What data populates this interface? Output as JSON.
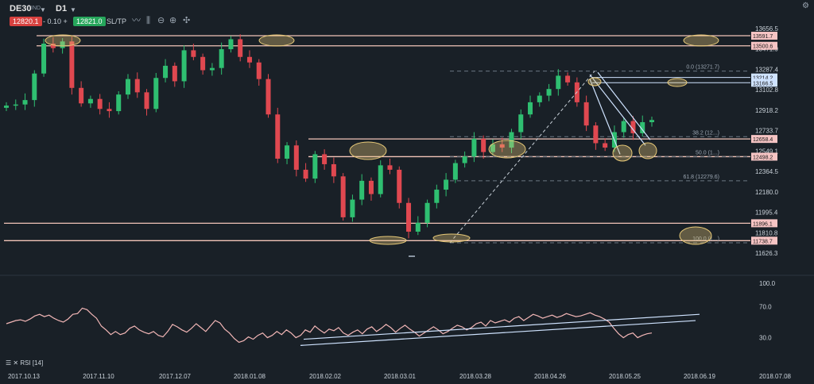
{
  "toolbar": {
    "symbol": "DE30",
    "symbol_sub": "IND",
    "timeframe": "D1",
    "bid": "12820.1",
    "spread": "- 0.10 +",
    "ask": "12821.0",
    "sltp": "SL/TP",
    "icons": [
      "line-chart-icon",
      "indicators-icon",
      "zoom-out-icon",
      "zoom-in-icon",
      "crosshair-icon"
    ],
    "settings_icon": "gear-icon"
  },
  "rsi_label": "RSI [14]",
  "chart_data": [
    {
      "type": "candlestick",
      "ylim": [
        11626.3,
        13656.5
      ],
      "y_ticks": [
        "13656.5",
        "13471.9",
        "13287.4",
        "13102.8",
        "12918.2",
        "12733.7",
        "12549.1",
        "12364.5",
        "12180.0",
        "11995.4",
        "11810.8",
        "11626.3"
      ],
      "x_ticks": [
        "2017.10.13",
        "2017.11.10",
        "2017.12.07",
        "2018.01.08",
        "2018.02.02",
        "2018.03.01",
        "2018.03.28",
        "2018.04.26",
        "2018.05.25",
        "2018.06.19",
        "2018.07.08"
      ],
      "horizontal_levels": [
        {
          "label": "13591.7",
          "value": 13591.7
        },
        {
          "label": "13500.6",
          "value": 13500.6
        },
        {
          "label": "12658.4",
          "value": 12658.4
        },
        {
          "label": "12498.2",
          "value": 12498.2
        },
        {
          "label": "11896.1",
          "value": 11896.1
        },
        {
          "label": "11738.7",
          "value": 11738.7
        }
      ],
      "channel_levels": [
        {
          "label": "13214.2",
          "value": 13214.2
        },
        {
          "label": "13166.5",
          "value": 13166.5
        }
      ],
      "fibonacci": [
        {
          "label": "0.0 (13271.7)",
          "value": 13271.7
        },
        {
          "label": "38.2 (12...)",
          "value": 12679
        },
        {
          "label": "50.0 (1...)",
          "value": 12497
        },
        {
          "label": "61.8 (12279.6)",
          "value": 12279.6
        },
        {
          "label": "100.0 (1...)",
          "value": 11720
        }
      ],
      "close_series_sample": [
        12960,
        12970,
        13010,
        13250,
        13520,
        13480,
        13540,
        13120,
        12980,
        13020,
        12930,
        12910,
        13060,
        13200,
        13080,
        12930,
        13210,
        13320,
        13180,
        13460,
        13400,
        13280,
        13300,
        13470,
        13560,
        13400,
        13350,
        13200,
        12880,
        12480,
        12600,
        12380,
        12300,
        12520,
        12430,
        12320,
        11950,
        12110,
        12280,
        12160,
        12420,
        12380,
        12080,
        11820,
        11900,
        12080,
        12200,
        12290,
        12440,
        12500,
        12660,
        12540,
        12610,
        12580,
        12720,
        12880,
        12990,
        13050,
        13110,
        13230,
        13170,
        12990,
        12780,
        12620,
        12580,
        12720,
        12820,
        12710,
        12810,
        12830
      ]
    },
    {
      "type": "line",
      "name": "RSI [14]",
      "ylim": [
        0,
        100
      ],
      "y_ticks": [
        "100.0",
        "70.0",
        "30.0"
      ],
      "values": [
        48,
        50,
        52,
        53,
        51,
        54,
        58,
        60,
        57,
        59,
        55,
        52,
        50,
        54,
        60,
        61,
        68,
        66,
        60,
        55,
        45,
        40,
        34,
        38,
        34,
        36,
        42,
        45,
        40,
        37,
        35,
        38,
        33,
        31,
        38,
        47,
        44,
        40,
        37,
        42,
        48,
        43,
        38,
        45,
        52,
        49,
        41,
        36,
        29,
        24,
        26,
        31,
        28,
        33,
        36,
        30,
        33,
        38,
        34,
        40,
        36,
        30,
        33,
        40,
        37,
        45,
        40,
        36,
        41,
        39,
        43,
        36,
        33,
        37,
        40,
        35,
        41,
        44,
        38,
        42,
        47,
        43,
        37,
        42,
        46,
        41,
        37,
        32,
        36,
        40,
        44,
        40,
        35,
        38,
        42,
        46,
        44,
        40,
        43,
        48,
        50,
        45,
        52,
        49,
        51,
        53,
        50,
        55,
        57,
        52,
        56,
        60,
        58,
        55,
        57,
        59,
        56,
        58,
        61,
        59,
        57,
        58,
        60,
        62,
        59,
        57,
        54,
        50,
        42,
        35,
        30,
        34,
        36,
        30,
        33,
        35,
        36
      ]
    }
  ]
}
